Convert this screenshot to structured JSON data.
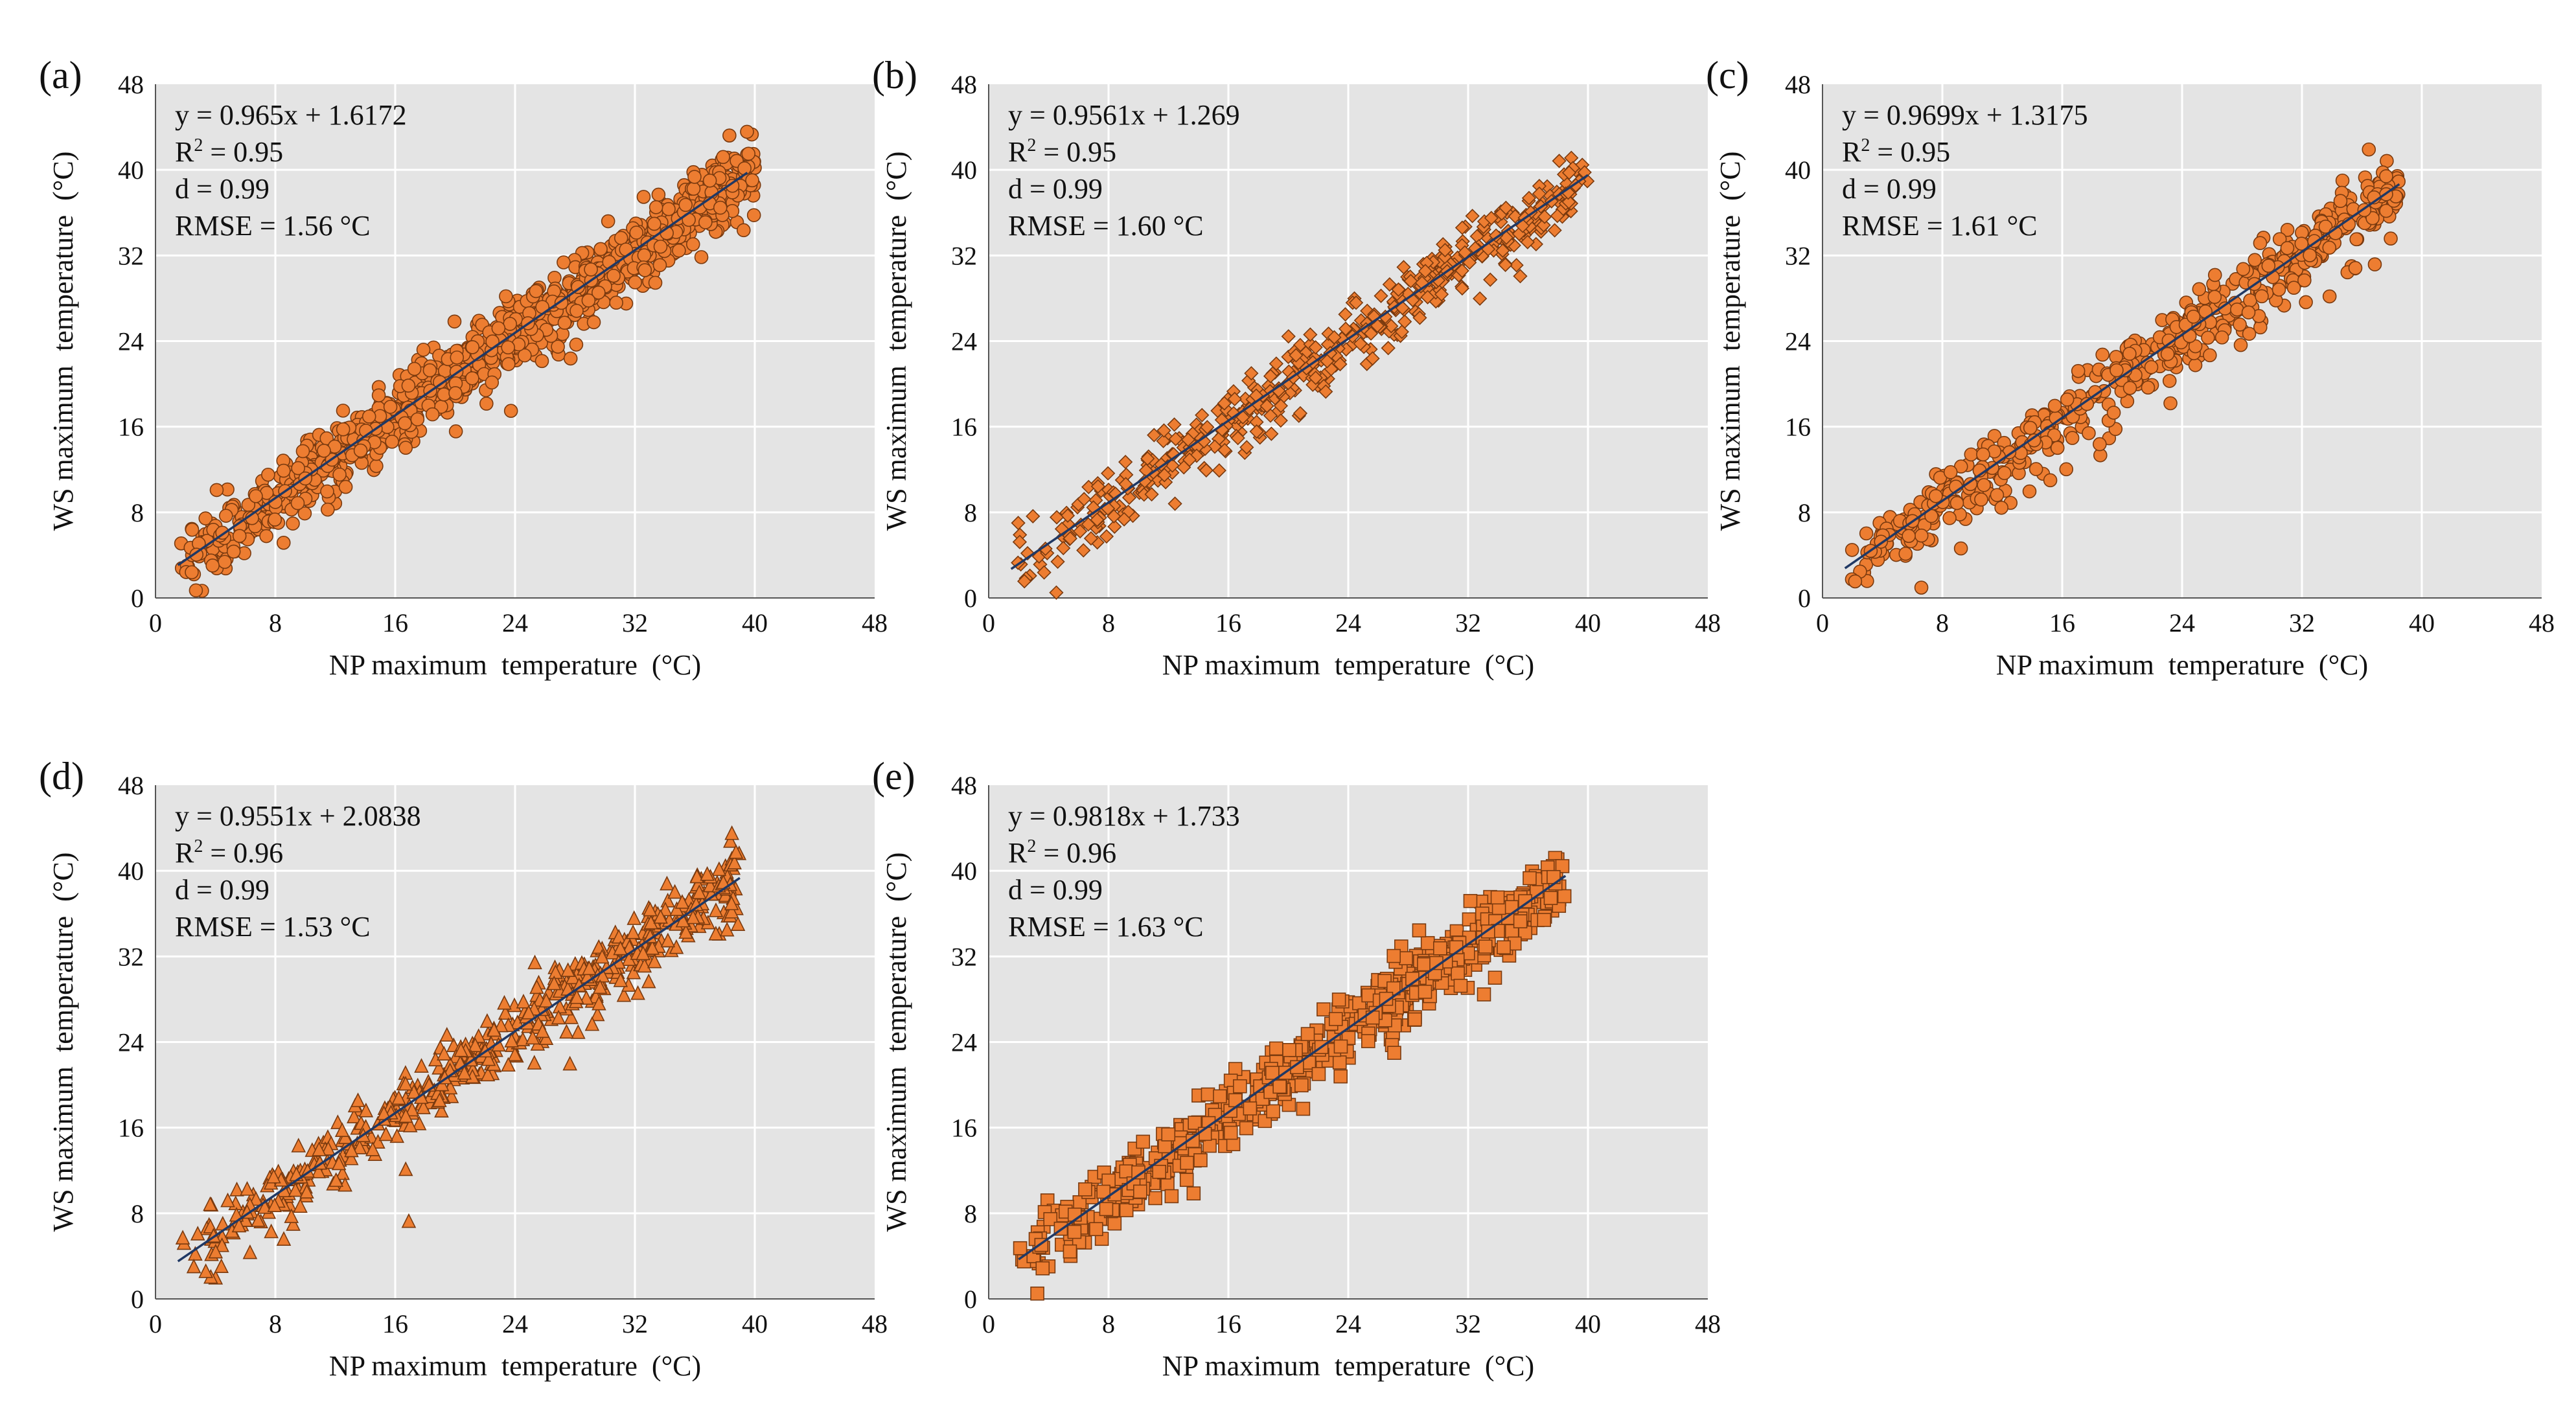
{
  "figure": {
    "title": ""
  },
  "colors": {
    "plot_bg": "#e4e4e4",
    "grid": "#ffffff",
    "marker_fill": "#ed7d31",
    "marker_stroke": "#7a3a0f",
    "trendline": "#1f3864",
    "text": "#111111"
  },
  "chart_data": [
    {
      "id": "a",
      "panel_label": "(a)",
      "type": "scatter",
      "marker": "circle",
      "xlabel": "NP maximum  temperature  (°C)",
      "ylabel": "WS maximum  temperature  (°C)",
      "xlim": [
        0,
        48
      ],
      "ylim": [
        0,
        48
      ],
      "xticks": [
        "0",
        "8",
        "16",
        "24",
        "32",
        "40",
        "48"
      ],
      "yticks": [
        "0",
        "8",
        "16",
        "24",
        "32",
        "40",
        "48"
      ],
      "grid": true,
      "equation": "y = 0.965x + 1.6172",
      "r2_prefix": "R",
      "r2_sup": "2",
      "r2_value": " = 0.95",
      "d_text": "d = 0.99",
      "rmse_text": "RMSE = 1.56 °C",
      "fit": {
        "slope": 0.965,
        "intercept": 1.6172,
        "x_range": [
          1.5,
          39.5
        ]
      },
      "n_points": 1100,
      "x_range": [
        1.5,
        40
      ],
      "noise_sd": 1.6
    },
    {
      "id": "b",
      "panel_label": "(b)",
      "type": "scatter",
      "marker": "diamond",
      "xlabel": "NP maximum  temperature  (°C)",
      "ylabel": "WS maximum  temperature  (°C)",
      "xlim": [
        0,
        48
      ],
      "ylim": [
        0,
        48
      ],
      "xticks": [
        "0",
        "8",
        "16",
        "24",
        "32",
        "40",
        "48"
      ],
      "yticks": [
        "0",
        "8",
        "16",
        "24",
        "32",
        "40",
        "48"
      ],
      "grid": true,
      "equation": "y = 0.9561x + 1.269",
      "r2_prefix": "R",
      "r2_sup": "2",
      "r2_value": " = 0.95",
      "d_text": "d = 0.99",
      "rmse_text": "RMSE = 1.60 °C",
      "fit": {
        "slope": 0.9561,
        "intercept": 1.269,
        "x_range": [
          1.5,
          40
        ]
      },
      "n_points": 520,
      "x_range": [
        1.5,
        40
      ],
      "noise_sd": 1.6
    },
    {
      "id": "c",
      "panel_label": "(c)",
      "type": "scatter",
      "marker": "circle",
      "xlabel": "NP maximum  temperature  (°C)",
      "ylabel": "WS maximum  temperature  (°C)",
      "xlim": [
        0,
        48
      ],
      "ylim": [
        0,
        48
      ],
      "xticks": [
        "0",
        "8",
        "16",
        "24",
        "32",
        "40",
        "48"
      ],
      "yticks": [
        "0",
        "8",
        "16",
        "24",
        "32",
        "40",
        "48"
      ],
      "grid": true,
      "equation": "y = 0.9699x + 1.3175",
      "r2_prefix": "R",
      "r2_sup": "2",
      "r2_value": " = 0.95",
      "d_text": "d = 0.99",
      "rmse_text": "RMSE = 1.61 °C",
      "fit": {
        "slope": 0.9699,
        "intercept": 1.3175,
        "x_range": [
          1.5,
          38.5
        ]
      },
      "n_points": 560,
      "x_range": [
        1.5,
        38.5
      ],
      "noise_sd": 1.6
    },
    {
      "id": "d",
      "panel_label": "(d)",
      "type": "scatter",
      "marker": "triangle",
      "xlabel": "NP maximum  temperature  (°C)",
      "ylabel": "WS maximum  temperature  (°C)",
      "xlim": [
        0,
        48
      ],
      "ylim": [
        0,
        48
      ],
      "xticks": [
        "0",
        "8",
        "16",
        "24",
        "32",
        "40",
        "48"
      ],
      "yticks": [
        "0",
        "8",
        "16",
        "24",
        "32",
        "40",
        "48"
      ],
      "grid": true,
      "equation": "y = 0.9551x + 2.0838",
      "r2_prefix": "R",
      "r2_sup": "2",
      "r2_value": " = 0.96",
      "d_text": "d = 0.99",
      "rmse_text": "RMSE = 1.53 °C",
      "fit": {
        "slope": 0.9551,
        "intercept": 2.0838,
        "x_range": [
          1.5,
          39
        ]
      },
      "n_points": 560,
      "x_range": [
        1.5,
        39
      ],
      "noise_sd": 1.5
    },
    {
      "id": "e",
      "panel_label": "(e)",
      "type": "scatter",
      "marker": "square",
      "xlabel": "NP maximum  temperature  (°C)",
      "ylabel": "WS maximum  temperature  (°C)",
      "xlim": [
        0,
        48
      ],
      "ylim": [
        0,
        48
      ],
      "xticks": [
        "0",
        "8",
        "16",
        "24",
        "32",
        "40",
        "48"
      ],
      "yticks": [
        "0",
        "8",
        "16",
        "24",
        "32",
        "40",
        "48"
      ],
      "grid": true,
      "equation": "y = 0.9818x + 1.733",
      "r2_prefix": "R",
      "r2_sup": "2",
      "r2_value": " = 0.96",
      "d_text": "d = 0.99",
      "rmse_text": "RMSE = 1.63 °C",
      "fit": {
        "slope": 0.9818,
        "intercept": 1.733,
        "x_range": [
          2,
          38.5
        ]
      },
      "n_points": 620,
      "x_range": [
        2,
        38.5
      ],
      "noise_sd": 1.6
    }
  ]
}
